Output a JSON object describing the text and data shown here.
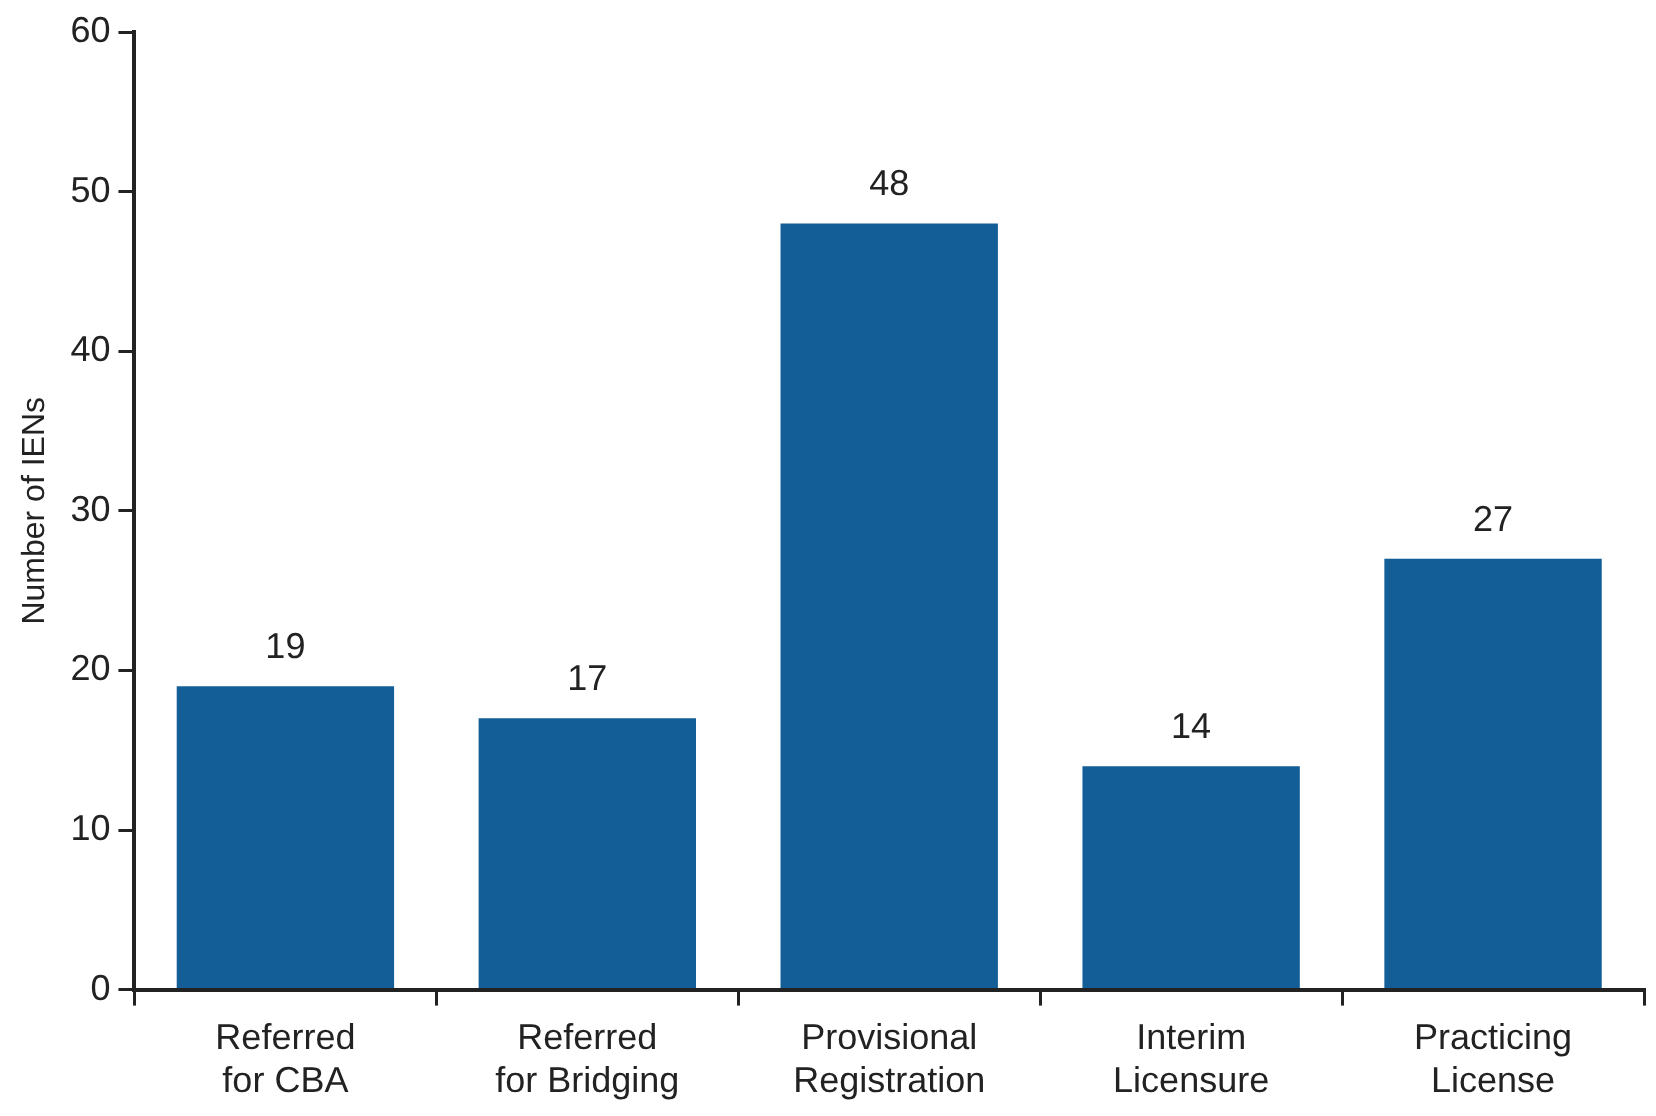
{
  "chart_data": {
    "type": "bar",
    "ylabel": "Number of IENs",
    "categories": [
      "Referred for CBA",
      "Referred for Bridging",
      "Provisional Registration",
      "Interim Licensure",
      "Practicing License"
    ],
    "values": [
      19,
      17,
      48,
      14,
      27
    ],
    "color": "#135e96",
    "ylim": [
      0,
      60
    ],
    "yticks": [
      0,
      10,
      20,
      30,
      40,
      50,
      60
    ],
    "grid": false,
    "data_labels": true,
    "legend": false
  }
}
